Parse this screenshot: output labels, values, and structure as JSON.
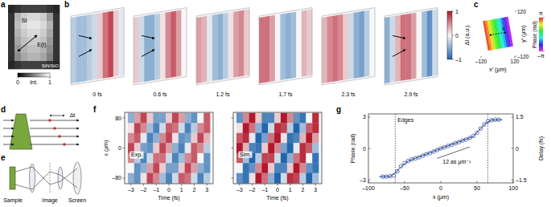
{
  "chart_data": [
    {
      "panel": "a",
      "type": "image",
      "annotations": [
        "Si",
        "E(t)",
        "SiN/SiO"
      ],
      "cells": [
        [
          0.15,
          0.2,
          0.25,
          0.25,
          0.25,
          0.25,
          0.2,
          0.15
        ],
        [
          0.2,
          0.7,
          0.8,
          0.85,
          0.85,
          0.8,
          0.6,
          0.2
        ],
        [
          0.2,
          0.75,
          0.85,
          0.9,
          0.9,
          0.85,
          0.7,
          0.2
        ],
        [
          0.2,
          0.7,
          0.8,
          0.85,
          0.85,
          0.8,
          0.65,
          0.2
        ],
        [
          0.2,
          0.65,
          0.75,
          0.8,
          0.8,
          0.75,
          0.6,
          0.2
        ],
        [
          0.2,
          0.6,
          0.7,
          0.75,
          0.75,
          0.7,
          0.55,
          0.2
        ],
        [
          0.2,
          0.55,
          0.65,
          0.7,
          0.7,
          0.65,
          0.5,
          0.2
        ],
        [
          0.15,
          0.2,
          0.25,
          0.25,
          0.25,
          0.25,
          0.2,
          0.15
        ]
      ],
      "colorbar": {
        "label": "Int.",
        "range": [
          0,
          1
        ],
        "ticks": [
          0,
          1
        ]
      }
    },
    {
      "panel": "b",
      "type": "heatmap",
      "frames": [
        {
          "label": "0 fs",
          "values": [
            -0.3,
            -0.4,
            -0.4,
            -0.3,
            -0.2,
            0.2,
            0.6,
            0.8,
            0.2,
            -0.1
          ]
        },
        {
          "label": "0.6 fs",
          "values": [
            0.2,
            -0.2,
            -0.5,
            -0.5,
            -0.3,
            0.1,
            0.5,
            0.7,
            0.4,
            0.0
          ]
        },
        {
          "label": "1.2 fs",
          "values": [
            0.4,
            0.3,
            -0.1,
            -0.4,
            -0.5,
            -0.3,
            0.1,
            0.4,
            0.5,
            0.2
          ]
        },
        {
          "label": "1.7 fs",
          "values": [
            0.6,
            0.6,
            0.4,
            0.0,
            -0.4,
            -0.5,
            -0.4,
            0.0,
            0.3,
            0.2
          ]
        },
        {
          "label": "2.3 fs",
          "values": [
            0.3,
            0.5,
            0.6,
            0.5,
            0.2,
            -0.2,
            -0.5,
            -0.6,
            -0.3,
            0.0
          ]
        },
        {
          "label": "2.9 fs",
          "values": [
            -0.5,
            -0.2,
            0.3,
            0.6,
            0.6,
            0.4,
            0.0,
            -0.4,
            -0.7,
            -0.2
          ]
        }
      ],
      "colorbar": {
        "label": "ΔI (a.u.)",
        "range": [
          -1,
          1
        ],
        "ticks": [
          1,
          0,
          {
            "value": -1,
            "label": "–1"
          }
        ]
      }
    },
    {
      "panel": "c",
      "type": "heatmap",
      "annotations": [
        "x"
      ],
      "x": [
        -82.5,
        -67.5,
        -52.5,
        -37.5,
        -22.5,
        -7.5,
        7.5,
        22.5,
        37.5,
        52.5,
        67.5,
        82.5
      ],
      "values": [
        2.9,
        2.5,
        2.0,
        1.5,
        1.0,
        0.5,
        0.0,
        -0.5,
        -1.0,
        -1.6,
        -2.2,
        -2.8
      ],
      "map_y": [
        -80,
        80
      ],
      "xlim": [
        -120,
        120
      ],
      "xticks": [
        {
          "value": -120,
          "label": "–120"
        },
        120
      ],
      "ylim": [
        -120,
        120
      ],
      "yticks": [
        120,
        {
          "value": -120,
          "label": "–120"
        }
      ],
      "xlabel": "x′ (μm)",
      "ylabel": "y′ (μm)",
      "colorbar": {
        "label": "Phase (rad)",
        "range": [
          -3.1416,
          3.1416
        ],
        "ticks": [
          {
            "value": 3.1416,
            "label": "π"
          },
          {
            "value": -3.1416,
            "label": "–π"
          }
        ]
      }
    },
    {
      "panel": "f",
      "type": "heatmap",
      "title": "Exp.",
      "x": [
        -3,
        -2.5,
        -2,
        -1.5,
        -1,
        -0.5,
        0,
        0.5,
        1,
        1.5,
        2,
        2.5,
        3
      ],
      "y": [
        80,
        53,
        27,
        0,
        -27,
        -53,
        -80
      ],
      "cells": [
        [
          -0.5,
          0.4,
          0.8,
          0.2,
          -0.6,
          -0.6,
          0.2,
          0.8,
          0.4,
          -0.5,
          -0.7,
          0.0,
          0.7
        ],
        [
          0.1,
          0.8,
          0.5,
          -0.4,
          -0.8,
          -0.2,
          0.7,
          0.6,
          -0.2,
          -0.8,
          -0.3,
          0.5,
          0.7
        ],
        [
          0.5,
          0.7,
          -0.1,
          -0.8,
          -0.5,
          0.5,
          0.8,
          0.1,
          -0.7,
          -0.6,
          0.2,
          0.8,
          0.3
        ],
        [
          0.8,
          0.2,
          -0.6,
          -0.7,
          0.2,
          0.8,
          0.4,
          -0.5,
          -0.8,
          -0.1,
          0.7,
          0.5,
          -0.3
        ],
        [
          0.5,
          -0.3,
          -0.8,
          -0.2,
          0.6,
          0.6,
          -0.2,
          -0.8,
          -0.4,
          0.5,
          0.7,
          0.0,
          -0.7
        ],
        [
          0.0,
          -0.7,
          -0.5,
          0.4,
          0.8,
          0.2,
          -0.6,
          -0.6,
          0.2,
          0.8,
          0.4,
          -0.5,
          -0.7
        ],
        [
          -0.5,
          -0.7,
          0.1,
          0.8,
          0.5,
          -0.4,
          -0.8,
          -0.2,
          0.7,
          0.6,
          -0.2,
          -0.8,
          -0.3
        ]
      ],
      "zlim": [
        -1,
        1
      ],
      "xlim": [
        -3.5,
        3.5
      ],
      "xticks": [
        {
          "value": -3,
          "label": "–3"
        },
        {
          "value": -2,
          "label": "–2"
        },
        {
          "value": -1,
          "label": "–1"
        },
        0,
        1,
        2,
        3
      ],
      "ylim": [
        -95,
        95
      ],
      "yticks": [
        80,
        0,
        {
          "value": -80,
          "label": "–80"
        }
      ],
      "xlabel": "Time (fs)",
      "ylabel": "x (μm)"
    },
    {
      "type": "heatmap",
      "title": "Sim.",
      "tick_labels": "x",
      "x": [
        -3,
        -2.5,
        -2,
        -1.5,
        -1,
        -0.5,
        0,
        0.5,
        1,
        1.5,
        2,
        2.5,
        3
      ],
      "y": [
        80,
        53,
        27,
        0,
        -27,
        -53,
        -80
      ],
      "cells": [
        [
          -0.7,
          0.5,
          1.0,
          0.2,
          -0.8,
          -0.8,
          0.2,
          1.0,
          0.5,
          -0.7,
          -0.9,
          0.0,
          0.9
        ],
        [
          0.1,
          1.0,
          0.6,
          -0.5,
          -1.0,
          -0.2,
          0.9,
          0.8,
          -0.3,
          -1.0,
          -0.4,
          0.7,
          0.9
        ],
        [
          0.7,
          0.9,
          -0.1,
          -1.0,
          -0.6,
          0.6,
          1.0,
          0.1,
          -0.9,
          -0.8,
          0.3,
          1.0,
          0.4
        ],
        [
          1.0,
          0.3,
          -0.8,
          -0.9,
          0.2,
          1.0,
          0.5,
          -0.6,
          -1.0,
          -0.1,
          0.9,
          0.7,
          -0.4
        ],
        [
          0.7,
          -0.4,
          -1.0,
          -0.3,
          0.8,
          0.8,
          -0.2,
          -1.0,
          -0.5,
          0.6,
          0.9,
          0.0,
          -0.9
        ],
        [
          0.0,
          -0.9,
          -0.7,
          0.5,
          1.0,
          0.2,
          -0.8,
          -0.8,
          0.2,
          1.0,
          0.5,
          -0.7,
          -0.9
        ],
        [
          -0.7,
          -0.9,
          0.1,
          1.0,
          0.6,
          -0.5,
          -1.0,
          -0.2,
          0.9,
          0.8,
          -0.3,
          -1.0,
          -0.4
        ]
      ],
      "zlim": [
        -1,
        1
      ],
      "xlim": [
        -3.5,
        3.5
      ],
      "xticks": [
        {
          "value": -3,
          "label": "–3"
        },
        {
          "value": -2,
          "label": "–2"
        },
        {
          "value": -1,
          "label": "–1"
        },
        0,
        1,
        2,
        3
      ],
      "ylim": [
        -95,
        95
      ],
      "yticks": [
        80,
        0,
        -80
      ],
      "xlabel": "Time (fs)"
    },
    {
      "panel": "g",
      "type": "scatter",
      "series": [
        {
          "type": "scatter",
          "marker": "circle",
          "color": "#24408e",
          "x": [
            -80,
            -75,
            -70,
            -65,
            -60,
            -55,
            -50,
            -45,
            -40,
            -35,
            -30,
            -25,
            -20,
            -15,
            -10,
            -5,
            0,
            5,
            10,
            15,
            20,
            25,
            30,
            35,
            40,
            45,
            50,
            55,
            60,
            65,
            70,
            75,
            80
          ],
          "values": [
            -2.7,
            -2.7,
            -2.65,
            -2.6,
            -2.2,
            -1.7,
            -1.4,
            -1.2,
            -1.05,
            -0.95,
            -0.85,
            -0.7,
            -0.55,
            -0.45,
            -0.3,
            -0.15,
            0.0,
            0.1,
            0.25,
            0.35,
            0.5,
            0.6,
            0.75,
            0.85,
            1.0,
            1.2,
            1.5,
            1.9,
            2.3,
            2.6,
            2.7,
            2.75,
            2.75
          ]
        },
        {
          "type": "line",
          "color": "#24408e",
          "x": [
            -85,
            -70,
            -62,
            -55,
            -45,
            -20,
            0,
            20,
            45,
            55,
            62,
            70,
            85
          ],
          "values": [
            -2.7,
            -2.68,
            -2.3,
            -1.75,
            -1.2,
            -0.55,
            0.0,
            0.5,
            1.15,
            1.9,
            2.4,
            2.72,
            2.75
          ]
        }
      ],
      "edges": [
        -63,
        65
      ],
      "annotations": [
        "Edges",
        "12 as μm⁻¹"
      ],
      "xlim": [
        -100,
        100
      ],
      "xticks": [
        {
          "value": -100,
          "label": "–100"
        },
        {
          "value": -50,
          "label": "–50"
        },
        0,
        50,
        100
      ],
      "ylim": [
        -3.3,
        3.3
      ],
      "yticks": [
        3,
        0,
        {
          "value": -3,
          "label": "–3"
        }
      ],
      "y2lim": [
        -1.65,
        1.65
      ],
      "y2ticks": [
        1.5,
        0,
        {
          "value": -1.5,
          "label": "–1.5"
        }
      ],
      "xlabel": "x (μm)",
      "ylabel": "Phase (rad)",
      "y2label": "Delay (fs)"
    }
  ],
  "diagrams": [
    {
      "panel": "d",
      "labels": [
        "Δt"
      ]
    },
    {
      "panel": "e",
      "labels": [
        "Sample",
        "Image",
        "Screen"
      ]
    }
  ]
}
